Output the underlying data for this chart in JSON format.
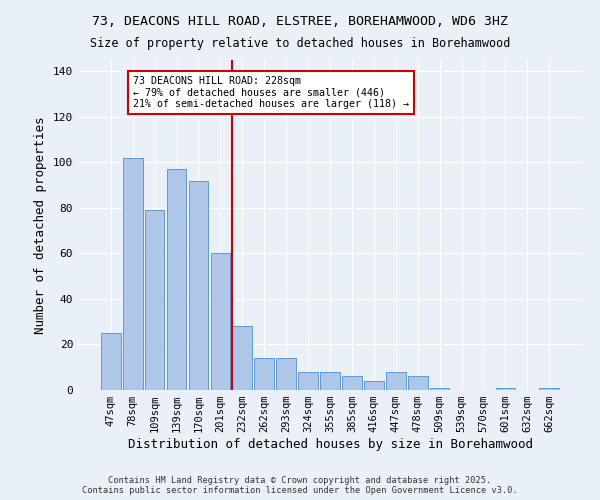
{
  "title": "73, DEACONS HILL ROAD, ELSTREE, BOREHAMWOOD, WD6 3HZ",
  "subtitle": "Size of property relative to detached houses in Borehamwood",
  "xlabel": "Distribution of detached houses by size in Borehamwood",
  "ylabel": "Number of detached properties",
  "categories": [
    "47sqm",
    "78sqm",
    "109sqm",
    "139sqm",
    "170sqm",
    "201sqm",
    "232sqm",
    "262sqm",
    "293sqm",
    "324sqm",
    "355sqm",
    "385sqm",
    "416sqm",
    "447sqm",
    "478sqm",
    "509sqm",
    "539sqm",
    "570sqm",
    "601sqm",
    "632sqm",
    "662sqm"
  ],
  "values": [
    25,
    102,
    79,
    97,
    92,
    60,
    28,
    14,
    14,
    8,
    8,
    6,
    4,
    8,
    6,
    1,
    0,
    0,
    1,
    0,
    1
  ],
  "bar_color": "#aec6e8",
  "bar_edge_color": "#5b9bd5",
  "red_line_index": 6,
  "annotation_line1": "73 DEACONS HILL ROAD: 228sqm",
  "annotation_line2": "← 79% of detached houses are smaller (446)",
  "annotation_line3": "21% of semi-detached houses are larger (118) →",
  "annotation_color": "#cc0000",
  "background_color": "#eaf0f8",
  "grid_color": "#ffffff",
  "ylim": [
    0,
    145
  ],
  "yticks": [
    0,
    20,
    40,
    60,
    80,
    100,
    120,
    140
  ],
  "footer_line1": "Contains HM Land Registry data © Crown copyright and database right 2025.",
  "footer_line2": "Contains public sector information licensed under the Open Government Licence v3.0."
}
